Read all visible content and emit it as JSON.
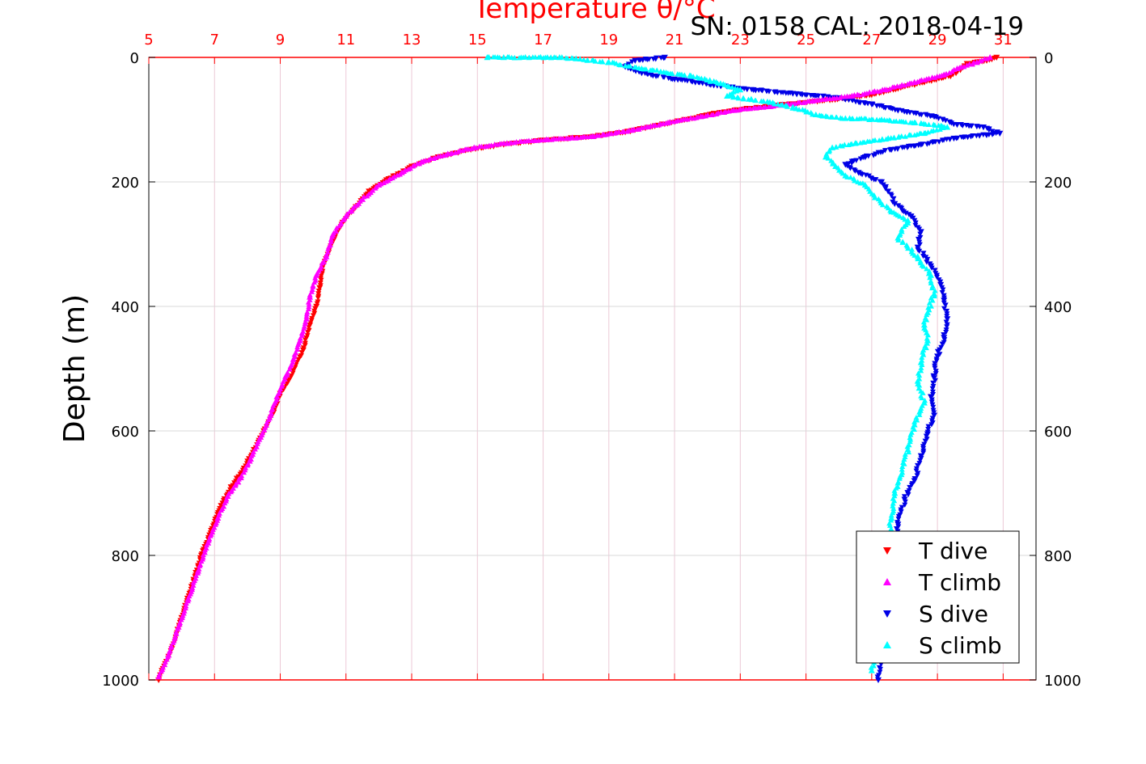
{
  "header": {
    "top_axis_label": "Temperature θ/°C",
    "serial_text": "SN: 0158  CAL: 2018-04-19"
  },
  "chart_data": {
    "type": "scatter",
    "ylabel": "Depth (m)",
    "xlabel_top": "Temperature θ/°C",
    "x_axis": {
      "range": [
        5,
        32
      ],
      "ticks": [
        5,
        7,
        9,
        11,
        13,
        15,
        17,
        19,
        21,
        23,
        25,
        27,
        29,
        31
      ],
      "color": "#ff0000"
    },
    "y_axis": {
      "range": [
        0,
        1000
      ],
      "inverted": true,
      "ticks": [
        0,
        200,
        400,
        600,
        800,
        1000
      ]
    },
    "grid": true,
    "legend": {
      "placement": "bottom-right",
      "entries": [
        {
          "label": "T dive",
          "color": "#ff0000",
          "marker": "triangle-down"
        },
        {
          "label": "T climb",
          "color": "#ff00ff",
          "marker": "triangle-up"
        },
        {
          "label": "S dive",
          "color": "#0000e6",
          "marker": "triangle-down"
        },
        {
          "label": "S climb",
          "color": "#00ffff",
          "marker": "triangle-up"
        }
      ]
    },
    "series": [
      {
        "name": "T dive",
        "color": "#ff0000",
        "marker": "triangle-down",
        "points": [
          [
            30.8,
            0
          ],
          [
            30.5,
            5
          ],
          [
            29.9,
            10
          ],
          [
            29.7,
            20
          ],
          [
            29.4,
            30
          ],
          [
            28.6,
            40
          ],
          [
            27.8,
            50
          ],
          [
            27.0,
            60
          ],
          [
            25.8,
            68
          ],
          [
            24.5,
            75
          ],
          [
            23.2,
            82
          ],
          [
            22.2,
            90
          ],
          [
            21.3,
            100
          ],
          [
            20.4,
            110
          ],
          [
            19.5,
            120
          ],
          [
            18.3,
            128
          ],
          [
            17.0,
            133
          ],
          [
            15.8,
            140
          ],
          [
            14.8,
            148
          ],
          [
            13.8,
            160
          ],
          [
            13.0,
            175
          ],
          [
            12.3,
            195
          ],
          [
            11.7,
            215
          ],
          [
            11.3,
            240
          ],
          [
            10.9,
            265
          ],
          [
            10.6,
            295
          ],
          [
            10.3,
            335
          ],
          [
            10.2,
            370
          ],
          [
            10.1,
            400
          ],
          [
            9.9,
            430
          ],
          [
            9.7,
            470
          ],
          [
            9.5,
            490
          ],
          [
            9.3,
            515
          ],
          [
            9.0,
            540
          ],
          [
            8.8,
            570
          ],
          [
            8.5,
            600
          ],
          [
            8.2,
            630
          ],
          [
            7.9,
            660
          ],
          [
            7.5,
            690
          ],
          [
            7.2,
            720
          ],
          [
            6.9,
            760
          ],
          [
            6.6,
            800
          ],
          [
            6.3,
            850
          ],
          [
            6.0,
            900
          ],
          [
            5.7,
            950
          ],
          [
            5.4,
            985
          ],
          [
            5.3,
            1000
          ]
        ]
      },
      {
        "name": "T climb",
        "color": "#ff00ff",
        "marker": "triangle-up",
        "points": [
          [
            30.6,
            0
          ],
          [
            30.2,
            8
          ],
          [
            29.6,
            18
          ],
          [
            29.2,
            28
          ],
          [
            28.3,
            40
          ],
          [
            27.4,
            52
          ],
          [
            26.4,
            62
          ],
          [
            25.2,
            70
          ],
          [
            24.0,
            78
          ],
          [
            22.8,
            85
          ],
          [
            21.8,
            95
          ],
          [
            20.8,
            105
          ],
          [
            19.7,
            117
          ],
          [
            18.5,
            127
          ],
          [
            17.1,
            132
          ],
          [
            15.9,
            138
          ],
          [
            14.9,
            145
          ],
          [
            14.1,
            155
          ],
          [
            13.3,
            168
          ],
          [
            12.7,
            185
          ],
          [
            12.0,
            205
          ],
          [
            11.5,
            228
          ],
          [
            11.0,
            255
          ],
          [
            10.6,
            285
          ],
          [
            10.4,
            320
          ],
          [
            10.1,
            350
          ],
          [
            9.9,
            385
          ],
          [
            9.8,
            420
          ],
          [
            9.6,
            455
          ],
          [
            9.4,
            485
          ],
          [
            9.2,
            510
          ],
          [
            8.9,
            545
          ],
          [
            8.7,
            575
          ],
          [
            8.4,
            610
          ],
          [
            8.1,
            645
          ],
          [
            7.8,
            675
          ],
          [
            7.4,
            705
          ],
          [
            7.1,
            740
          ],
          [
            6.8,
            780
          ],
          [
            6.5,
            825
          ],
          [
            6.2,
            870
          ],
          [
            5.9,
            915
          ],
          [
            5.6,
            960
          ],
          [
            5.3,
            995
          ]
        ]
      },
      {
        "name": "S dive",
        "color": "#0000e6",
        "marker": "triangle-down",
        "points": [
          [
            20.7,
            0
          ],
          [
            19.8,
            5
          ],
          [
            19.5,
            15
          ],
          [
            20.0,
            25
          ],
          [
            21.0,
            35
          ],
          [
            22.3,
            45
          ],
          [
            23.4,
            52
          ],
          [
            24.6,
            58
          ],
          [
            26.0,
            65
          ],
          [
            27.0,
            75
          ],
          [
            27.8,
            85
          ],
          [
            28.9,
            95
          ],
          [
            29.6,
            108
          ],
          [
            30.4,
            112
          ],
          [
            30.9,
            122
          ],
          [
            29.5,
            130
          ],
          [
            28.5,
            140
          ],
          [
            27.6,
            148
          ],
          [
            26.8,
            160
          ],
          [
            26.2,
            172
          ],
          [
            26.6,
            185
          ],
          [
            27.3,
            200
          ],
          [
            27.5,
            215
          ],
          [
            27.7,
            235
          ],
          [
            28.2,
            255
          ],
          [
            28.5,
            280
          ],
          [
            28.4,
            305
          ],
          [
            28.8,
            335
          ],
          [
            29.1,
            365
          ],
          [
            29.2,
            390
          ],
          [
            29.3,
            420
          ],
          [
            29.2,
            450
          ],
          [
            29.0,
            480
          ],
          [
            28.9,
            515
          ],
          [
            28.8,
            545
          ],
          [
            28.9,
            575
          ],
          [
            28.7,
            605
          ],
          [
            28.5,
            640
          ],
          [
            28.3,
            680
          ],
          [
            28.0,
            710
          ],
          [
            27.8,
            750
          ],
          [
            27.6,
            800
          ],
          [
            27.5,
            850
          ],
          [
            27.4,
            900
          ],
          [
            27.3,
            950
          ],
          [
            27.2,
            1000
          ]
        ]
      },
      {
        "name": "S climb",
        "color": "#00ffff",
        "marker": "triangle-up",
        "points": [
          [
            15.3,
            0
          ],
          [
            15.8,
            0
          ],
          [
            17.5,
            0
          ],
          [
            18.0,
            2
          ],
          [
            19.0,
            8
          ],
          [
            20.0,
            18
          ],
          [
            21.5,
            30
          ],
          [
            22.4,
            42
          ],
          [
            23.0,
            52
          ],
          [
            22.6,
            62
          ],
          [
            23.9,
            72
          ],
          [
            24.7,
            82
          ],
          [
            25.3,
            92
          ],
          [
            26.2,
            98
          ],
          [
            27.3,
            100
          ],
          [
            28.3,
            105
          ],
          [
            29.3,
            112
          ],
          [
            28.6,
            122
          ],
          [
            27.5,
            130
          ],
          [
            26.5,
            138
          ],
          [
            25.8,
            145
          ],
          [
            25.6,
            160
          ],
          [
            25.9,
            175
          ],
          [
            26.2,
            190
          ],
          [
            26.8,
            205
          ],
          [
            27.1,
            225
          ],
          [
            27.6,
            248
          ],
          [
            28.1,
            262
          ],
          [
            27.8,
            290
          ],
          [
            28.4,
            320
          ],
          [
            28.8,
            350
          ],
          [
            28.9,
            380
          ],
          [
            28.7,
            410
          ],
          [
            28.6,
            430
          ],
          [
            28.7,
            455
          ],
          [
            28.5,
            490
          ],
          [
            28.4,
            520
          ],
          [
            28.6,
            555
          ],
          [
            28.3,
            590
          ],
          [
            28.1,
            630
          ],
          [
            27.9,
            670
          ],
          [
            27.7,
            700
          ],
          [
            27.6,
            740
          ],
          [
            27.5,
            790
          ],
          [
            27.3,
            840
          ],
          [
            27.2,
            890
          ],
          [
            27.1,
            940
          ],
          [
            27.0,
            985
          ]
        ]
      }
    ]
  }
}
